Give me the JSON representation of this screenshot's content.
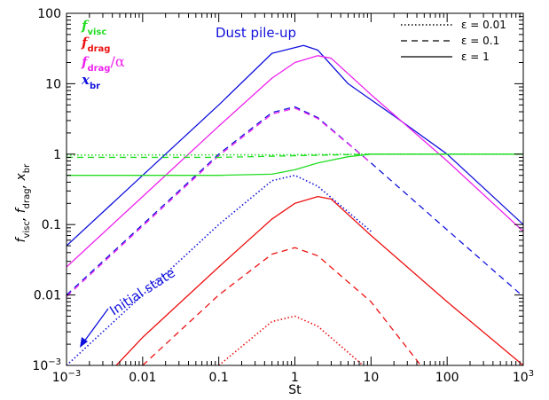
{
  "chart_data": {
    "type": "line",
    "xlabel": "St",
    "ylabel": {
      "main_parts": [
        "f",
        "visc",
        ", f",
        "drag",
        ", x",
        "br"
      ]
    },
    "xscale": "log",
    "yscale": "log",
    "xlim": [
      0.001,
      1000
    ],
    "ylim": [
      0.001,
      100
    ],
    "xticks": [
      {
        "v": 0.001,
        "base": "10",
        "exp": "−3"
      },
      {
        "v": 0.01,
        "text": "0.01"
      },
      {
        "v": 0.1,
        "text": "0.1"
      },
      {
        "v": 1,
        "text": "1"
      },
      {
        "v": 10,
        "text": "10"
      },
      {
        "v": 100,
        "text": "100"
      },
      {
        "v": 1000,
        "base": "10",
        "exp": "3"
      }
    ],
    "yticks": [
      {
        "v": 0.001,
        "base": "10",
        "exp": "−3"
      },
      {
        "v": 0.01,
        "text": "0.01"
      },
      {
        "v": 0.1,
        "text": "0.1"
      },
      {
        "v": 1,
        "text": "1"
      },
      {
        "v": 10,
        "text": "10"
      },
      {
        "v": 100,
        "text": "100"
      }
    ],
    "legend_left": [
      {
        "main": "f",
        "sub": "visc",
        "color": "#22dd22"
      },
      {
        "main": "f",
        "sub": "drag",
        "color": "#ee1111"
      },
      {
        "main": "f",
        "sub": "drag",
        "suffix": "/α",
        "color": "#ee22ee"
      },
      {
        "main": "x",
        "sub": "br",
        "color": "#1111dd"
      }
    ],
    "legend_right": [
      {
        "label": "ε = 0.01",
        "dash": "dotted"
      },
      {
        "label": "ε = 0.1",
        "dash": "dashed"
      },
      {
        "label": "ε = 1",
        "dash": "solid"
      }
    ],
    "annotations": {
      "pileup": "Dust pile-up",
      "initial": "Initial state"
    },
    "colors": {
      "visc": "#22dd22",
      "drag": "#ee1111",
      "drag_alpha": "#ee22ee",
      "xbr": "#1111dd"
    },
    "series": [
      {
        "quantity": "x_br",
        "eps": 1,
        "dash": "solid",
        "color": "#1111dd",
        "points": [
          [
            0.001,
            0.05
          ],
          [
            0.01,
            0.5
          ],
          [
            0.1,
            5
          ],
          [
            0.5,
            27
          ],
          [
            1.3,
            35
          ],
          [
            2,
            30
          ],
          [
            5,
            10
          ],
          [
            20,
            3.5
          ],
          [
            100,
            1
          ],
          [
            1000,
            0.1
          ]
        ]
      },
      {
        "quantity": "x_br",
        "eps": 0.1,
        "dash": "dashed",
        "color": "#1111dd",
        "points": [
          [
            0.001,
            0.01
          ],
          [
            0.01,
            0.1
          ],
          [
            0.1,
            1
          ],
          [
            0.5,
            3.9
          ],
          [
            1,
            4.7
          ],
          [
            2,
            3.3
          ],
          [
            10,
            0.75
          ],
          [
            100,
            0.084
          ],
          [
            1000,
            0.0095
          ]
        ]
      },
      {
        "quantity": "x_br",
        "eps": 0.01,
        "dash": "dotted",
        "color": "#1111dd",
        "points": [
          [
            0.001,
            0.001
          ],
          [
            0.01,
            0.01
          ],
          [
            0.1,
            0.1
          ],
          [
            0.5,
            0.42
          ],
          [
            1,
            0.5
          ],
          [
            2,
            0.35
          ],
          [
            10,
            0.08
          ]
        ]
      },
      {
        "quantity": "f_drag/alpha",
        "eps": 1,
        "dash": "solid",
        "color": "#ee22ee",
        "points": [
          [
            0.001,
            0.025
          ],
          [
            0.01,
            0.25
          ],
          [
            0.1,
            2.5
          ],
          [
            0.5,
            12
          ],
          [
            1,
            20
          ],
          [
            2,
            25
          ],
          [
            3,
            23
          ],
          [
            10,
            7
          ],
          [
            100,
            0.8
          ],
          [
            1000,
            0.08
          ]
        ]
      },
      {
        "quantity": "f_drag/alpha",
        "eps": 0.1,
        "dash": "dashed",
        "color": "#ee22ee",
        "points": [
          [
            0.001,
            0.0095
          ],
          [
            0.01,
            0.095
          ],
          [
            0.1,
            0.95
          ],
          [
            0.5,
            3.7
          ],
          [
            1,
            4.5
          ],
          [
            2,
            3.2
          ],
          [
            10,
            0.75
          ]
        ]
      },
      {
        "quantity": "f_drag",
        "eps": 1,
        "dash": "solid",
        "color": "#ee1111",
        "points": [
          [
            0.0045,
            0.001
          ],
          [
            0.01,
            0.0025
          ],
          [
            0.1,
            0.025
          ],
          [
            0.5,
            0.12
          ],
          [
            1,
            0.2
          ],
          [
            2,
            0.25
          ],
          [
            3,
            0.23
          ],
          [
            10,
            0.07
          ],
          [
            100,
            0.008
          ],
          [
            1000,
            0.001
          ]
        ]
      },
      {
        "quantity": "f_drag",
        "eps": 0.1,
        "dash": "dashed",
        "color": "#ee1111",
        "points": [
          [
            0.01,
            0.001
          ],
          [
            0.1,
            0.01
          ],
          [
            0.5,
            0.038
          ],
          [
            1,
            0.047
          ],
          [
            2,
            0.036
          ],
          [
            10,
            0.008
          ],
          [
            45,
            0.001
          ]
        ]
      },
      {
        "quantity": "f_drag",
        "eps": 0.01,
        "dash": "dotted",
        "color": "#ee1111",
        "points": [
          [
            0.1,
            0.001
          ],
          [
            0.5,
            0.0042
          ],
          [
            1,
            0.005
          ],
          [
            2,
            0.0036
          ],
          [
            10,
            0.0008
          ]
        ]
      },
      {
        "quantity": "f_visc",
        "eps": 1,
        "dash": "solid",
        "color": "#22dd22",
        "points": [
          [
            0.001,
            0.5
          ],
          [
            0.1,
            0.5
          ],
          [
            0.5,
            0.52
          ],
          [
            1,
            0.6
          ],
          [
            2,
            0.75
          ],
          [
            5,
            0.92
          ],
          [
            10,
            1
          ],
          [
            1000,
            1
          ]
        ]
      },
      {
        "quantity": "f_visc",
        "eps": 0.1,
        "dash": "dashed",
        "color": "#22dd22",
        "points": [
          [
            0.001,
            0.9
          ],
          [
            0.1,
            0.9
          ],
          [
            1,
            0.95
          ],
          [
            10,
            1
          ],
          [
            1000,
            1
          ]
        ]
      },
      {
        "quantity": "f_visc",
        "eps": 0.01,
        "dash": "dotted",
        "color": "#22dd22",
        "points": [
          [
            0.001,
            0.97
          ],
          [
            1,
            0.98
          ],
          [
            10,
            1
          ],
          [
            1000,
            1
          ]
        ]
      }
    ]
  }
}
